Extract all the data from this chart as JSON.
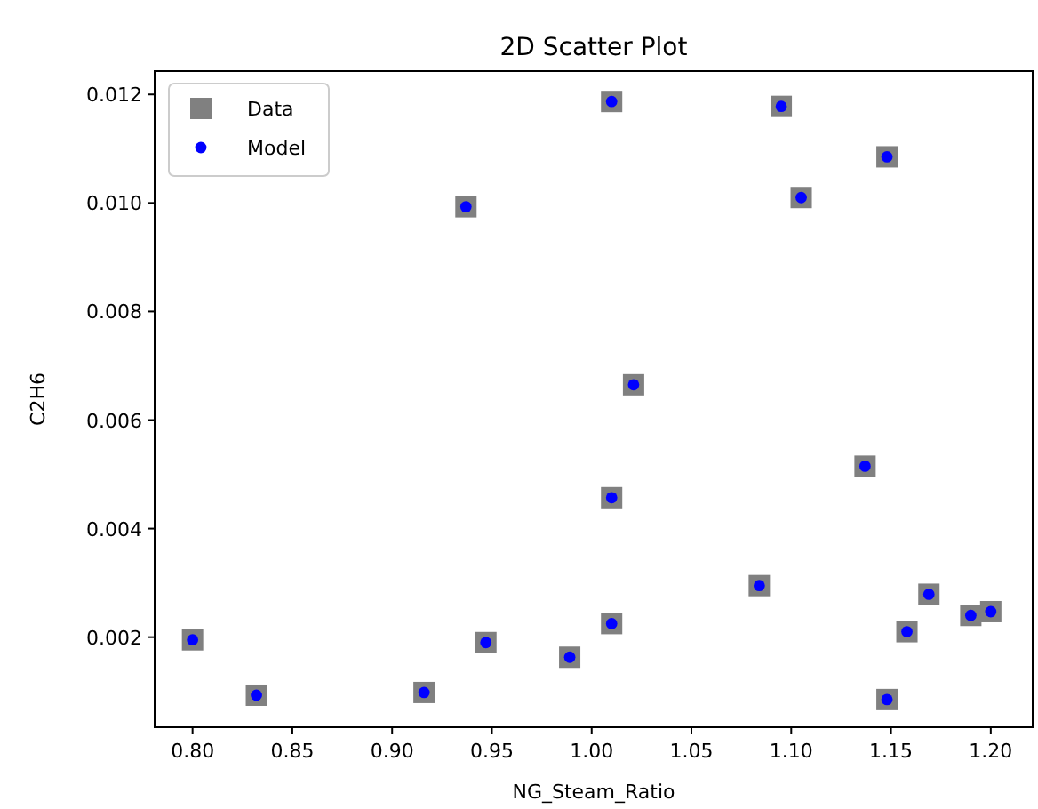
{
  "chart_data": {
    "type": "scatter",
    "title": "2D Scatter Plot",
    "xlabel": "NG_Steam_Ratio",
    "ylabel": "C2H6",
    "x": [
      0.8,
      0.832,
      0.916,
      0.937,
      0.947,
      0.989,
      1.01,
      1.01,
      1.01,
      1.021,
      1.084,
      1.095,
      1.105,
      1.137,
      1.148,
      1.148,
      1.158,
      1.169,
      1.19,
      1.2
    ],
    "series": [
      {
        "name": "Data",
        "color": "#808080",
        "marker": "square",
        "values": [
          0.00195,
          0.00093,
          0.00098,
          0.00993,
          0.0019,
          0.00163,
          0.00225,
          0.00457,
          0.01187,
          0.00665,
          0.00295,
          0.01178,
          0.0101,
          0.00515,
          0.00085,
          0.01085,
          0.0021,
          0.00279,
          0.0024,
          0.00247
        ]
      },
      {
        "name": "Model",
        "color": "#0000ff",
        "marker": "circle",
        "values": [
          0.00195,
          0.00093,
          0.00098,
          0.00993,
          0.0019,
          0.00163,
          0.00225,
          0.00457,
          0.01187,
          0.00665,
          0.00295,
          0.01178,
          0.0101,
          0.00515,
          0.00085,
          0.01085,
          0.0021,
          0.00279,
          0.0024,
          0.00247
        ]
      }
    ],
    "xlim": [
      0.781,
      1.221
    ],
    "xticks": [
      {
        "value": 0.8,
        "label": "0.80"
      },
      {
        "value": 0.85,
        "label": "0.85"
      },
      {
        "value": 0.9,
        "label": "0.90"
      },
      {
        "value": 0.95,
        "label": "0.95"
      },
      {
        "value": 1,
        "label": "1.00"
      },
      {
        "value": 1.05,
        "label": "1.05"
      },
      {
        "value": 1.1,
        "label": "1.10"
      },
      {
        "value": 1.15,
        "label": "1.15"
      },
      {
        "value": 1.2,
        "label": "1.20"
      }
    ],
    "ylim": [
      0.00034,
      0.01243
    ],
    "yticks": [
      0.002,
      0.004,
      0.006,
      0.008,
      {
        "value": 0.01,
        "label": "0.010"
      },
      0.012
    ],
    "grid": false,
    "legend": "top left"
  }
}
